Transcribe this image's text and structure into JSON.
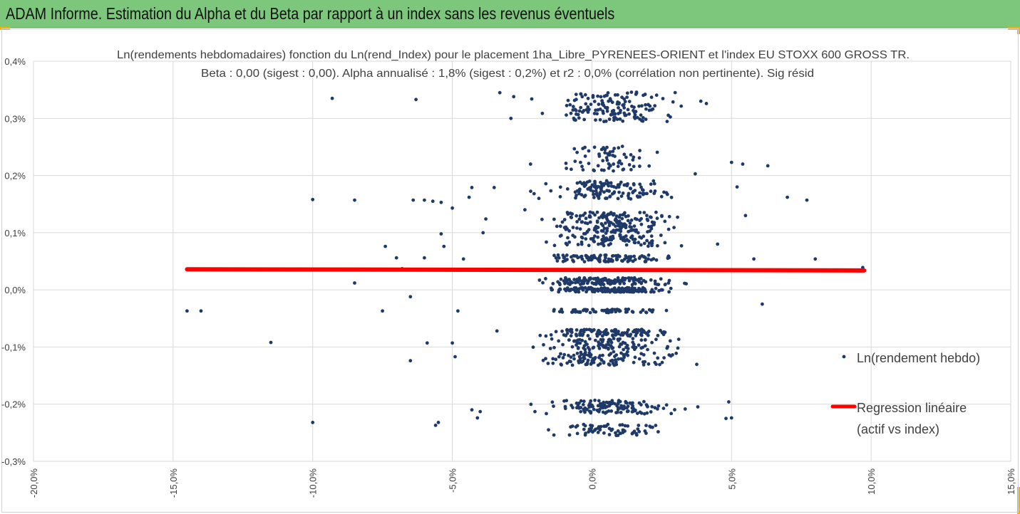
{
  "header": {
    "title": "ADAM Informe. Estimation du Alpha et du Beta par rapport à un index sans les revenus éventuels"
  },
  "colors": {
    "banner": "#7dc77c",
    "accent": "#f5b400",
    "points": "#1f3a68",
    "regression": "#ff0000",
    "grid": "#d9d9d9"
  },
  "chart_data": {
    "type": "scatter",
    "title_line1": "Ln(rendements hebdomadaires) fonction du Ln(rend_Index) pour le placement 1ha_Libre_PYRENEES-ORIENT et l'index EU STOXX 600 GROSS TR.",
    "title_line2": "Beta : 0,00 (sigest : 0,00). Alpha annualisé : 1,8% (sigest : 0,2%) et r2 : 0,0% (corrélation non pertinente). Sig résid",
    "xlim": [
      -20,
      15
    ],
    "ylim": [
      -0.3,
      0.4
    ],
    "x_ticks": [
      "-20,0%",
      "-15,0%",
      "-10,0%",
      "-5,0%",
      "0,0%",
      "5,0%",
      "10,0%",
      "15,0%"
    ],
    "y_ticks": [
      "0,4%",
      "0,3%",
      "0,2%",
      "0,1%",
      "0,0%",
      "-0,1%",
      "-0,2%",
      "-0,3%"
    ],
    "grid": true,
    "legend_position": "right",
    "series": [
      {
        "name": "Ln(rendement hebdo)",
        "kind": "scatter",
        "points": [
          [
            -14.5,
            -0.037
          ],
          [
            -14.0,
            -0.037
          ],
          [
            -11.5,
            -0.092
          ],
          [
            -10.0,
            0.158
          ],
          [
            -10.0,
            -0.232
          ],
          [
            -9.3,
            0.335
          ],
          [
            -8.5,
            0.157
          ],
          [
            -8.5,
            0.012
          ],
          [
            -7.5,
            -0.037
          ],
          [
            -7.4,
            0.076
          ],
          [
            -7.0,
            0.056
          ],
          [
            -6.8,
            0.037
          ],
          [
            -6.5,
            -0.012
          ],
          [
            -6.5,
            -0.124
          ],
          [
            -6.4,
            0.157
          ],
          [
            -6.3,
            0.333
          ],
          [
            -6.0,
            0.157
          ],
          [
            -6.0,
            0.056
          ],
          [
            -5.9,
            -0.093
          ],
          [
            -5.7,
            0.155
          ],
          [
            -5.6,
            -0.237
          ],
          [
            -5.5,
            -0.232
          ],
          [
            -5.4,
            0.153
          ],
          [
            -5.4,
            0.098
          ],
          [
            -5.3,
            0.076
          ],
          [
            -5.0,
            0.143
          ],
          [
            -5.0,
            -0.093
          ],
          [
            -4.9,
            -0.117
          ],
          [
            -4.8,
            -0.037
          ],
          [
            -4.6,
            0.054
          ],
          [
            -4.4,
            0.162
          ],
          [
            -4.3,
            -0.21
          ],
          [
            -4.3,
            0.179
          ],
          [
            -4.1,
            -0.224
          ],
          [
            -4.0,
            -0.213
          ],
          [
            -3.9,
            0.1
          ],
          [
            -3.8,
            0.124
          ],
          [
            -3.5,
            0.179
          ],
          [
            -3.4,
            -0.072
          ],
          [
            -3.3,
            0.345
          ],
          [
            -2.9,
            0.3
          ],
          [
            -2.8,
            0.338
          ],
          [
            -2.4,
            0.14
          ],
          [
            -2.2,
            0.22
          ],
          [
            -1.9,
            0.16
          ],
          [
            5.0,
            0.223
          ],
          [
            5.4,
            0.22
          ],
          [
            6.1,
            -0.025
          ],
          [
            6.3,
            0.217
          ],
          [
            7.0,
            0.162
          ],
          [
            7.7,
            0.157
          ],
          [
            8.0,
            0.054
          ],
          [
            9.6,
            0.033
          ],
          [
            9.7,
            0.039
          ],
          [
            3.7,
            0.203
          ],
          [
            4.1,
            0.326
          ],
          [
            3.9,
            0.33
          ],
          [
            4.5,
            0.08
          ],
          [
            4.7,
            0.035
          ],
          [
            4.8,
            -0.225
          ],
          [
            4.9,
            -0.196
          ],
          [
            5.0,
            -0.224
          ],
          [
            5.2,
            0.18
          ],
          [
            5.5,
            0.13
          ],
          [
            5.8,
            0.054
          ]
        ]
      },
      {
        "name": "Regression linéaire (actif vs index)",
        "name_lines": [
          "Regression linéaire",
          "(actif vs index)"
        ],
        "kind": "line",
        "points": [
          [
            -14.5,
            0.036
          ],
          [
            9.75,
            0.034
          ]
        ]
      }
    ]
  }
}
